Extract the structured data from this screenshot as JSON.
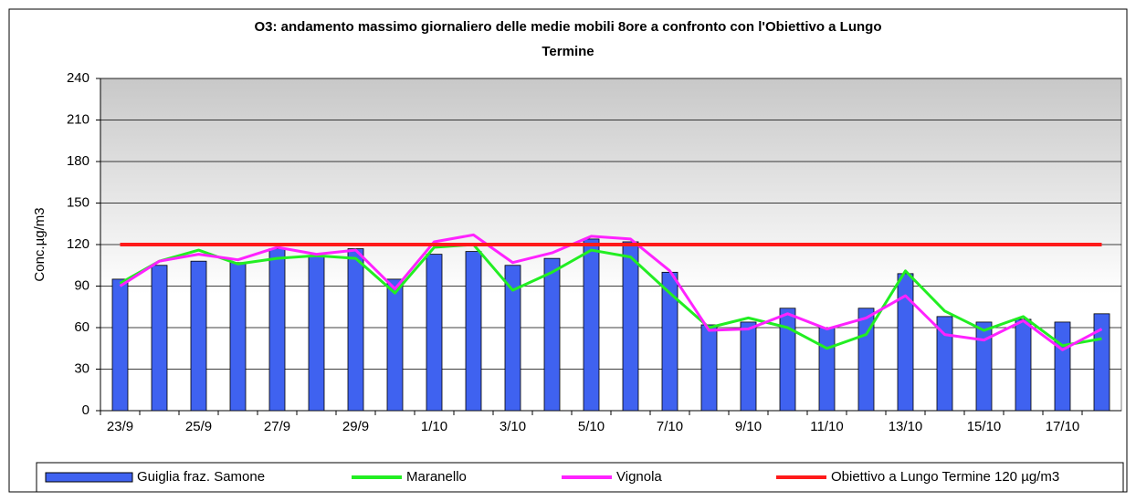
{
  "chart_data": {
    "type": "bar",
    "title": [
      "O3: andamento massimo giornaliero delle medie mobili 8ore a confronto con l'Obiettivo a Lungo",
      "Termine"
    ],
    "y_label": "Conc.µg/m3",
    "categories": [
      "23/9",
      null,
      "25/9",
      null,
      "27/9",
      null,
      "29/9",
      null,
      "1/10",
      null,
      "3/10",
      null,
      "5/10",
      null,
      "7/10",
      null,
      "9/10",
      null,
      "11/10",
      null,
      "13/10",
      null,
      "15/10",
      null,
      "17/10",
      null
    ],
    "ylim": [
      0,
      240
    ],
    "yticks": [
      0,
      30,
      60,
      90,
      120,
      150,
      180,
      210,
      240
    ],
    "grid": true,
    "legend": "bottom",
    "series": [
      {
        "name": "Guiglia fraz. Samone",
        "type": "bar",
        "color": "#3f62f0",
        "values": [
          95,
          105,
          108,
          107,
          117,
          112,
          117,
          95,
          113,
          115,
          105,
          110,
          124,
          122,
          100,
          62,
          64,
          74,
          60,
          74,
          99,
          68,
          64,
          66,
          64,
          70
        ]
      },
      {
        "name": "Maranello",
        "type": "line",
        "color": "#22ee22",
        "values": [
          92,
          108,
          116,
          106,
          110,
          112,
          110,
          85,
          118,
          120,
          87,
          100,
          116,
          111,
          85,
          60,
          67,
          60,
          45,
          55,
          101,
          72,
          58,
          68,
          47,
          52
        ]
      },
      {
        "name": "Vignola",
        "type": "line",
        "color": "#ff22ff",
        "values": [
          90,
          108,
          113,
          109,
          118,
          113,
          116,
          88,
          122,
          127,
          107,
          114,
          126,
          124,
          101,
          58,
          59,
          70,
          59,
          67,
          83,
          55,
          51,
          65,
          44,
          59
        ]
      },
      {
        "name": "Obiettivo  a Lungo Termine 120 µg/m3",
        "type": "line",
        "color": "#ff1a1a",
        "values": [
          120,
          120,
          120,
          120,
          120,
          120,
          120,
          120,
          120,
          120,
          120,
          120,
          120,
          120,
          120,
          120,
          120,
          120,
          120,
          120,
          120,
          120,
          120,
          120,
          120,
          120
        ]
      }
    ]
  }
}
